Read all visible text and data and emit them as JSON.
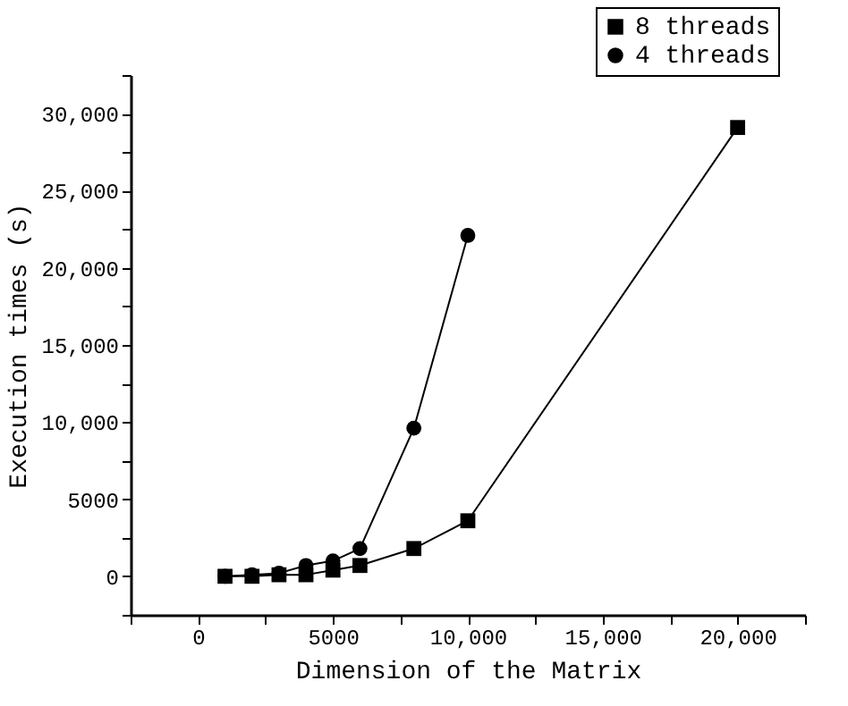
{
  "chart_data": {
    "type": "line",
    "xlabel": "Dimension of the Matrix",
    "ylabel": "Execution times (s)",
    "xlim": [
      -2500,
      22500
    ],
    "xticks": [
      {
        "value": -2500,
        "label": null
      },
      0,
      {
        "value": 2500,
        "label": null
      },
      5000,
      {
        "value": 7500,
        "label": null
      },
      {
        "value": 10000,
        "label": "10,000"
      },
      {
        "value": 12500,
        "label": null
      },
      {
        "value": 15000,
        "label": "15,000"
      },
      {
        "value": 17500,
        "label": null
      },
      {
        "value": 20000,
        "label": "20,000"
      },
      {
        "value": 22500,
        "label": null
      }
    ],
    "ylim": [
      -2500,
      32500
    ],
    "yticks": [
      {
        "value": -2500,
        "label": null
      },
      0,
      {
        "value": 2500,
        "label": null
      },
      5000,
      {
        "value": 7500,
        "label": null
      },
      {
        "value": 10000,
        "label": "10,000"
      },
      {
        "value": 12500,
        "label": null
      },
      {
        "value": 15000,
        "label": "15,000"
      },
      {
        "value": 17500,
        "label": null
      },
      {
        "value": 20000,
        "label": "20,000"
      },
      {
        "value": 22500,
        "label": null
      },
      {
        "value": 25000,
        "label": "25,000"
      },
      {
        "value": 27500,
        "label": null
      },
      {
        "value": 30000,
        "label": "30,000"
      },
      {
        "value": 32500,
        "label": null
      }
    ],
    "grid": false,
    "legend": "top right",
    "line_style": "solid",
    "series": [
      {
        "name": "8 threads",
        "color": "#000000",
        "marker": "square",
        "x": [
          1000,
          2000,
          3000,
          4000,
          5000,
          6000,
          8000,
          10000,
          20000
        ],
        "values": [
          0,
          0,
          100,
          100,
          400,
          700,
          1800,
          3600,
          29100
        ]
      },
      {
        "name": "4 threads",
        "color": "#000000",
        "marker": "circle",
        "x": [
          1000,
          2000,
          3000,
          4000,
          5000,
          6000,
          8000,
          10000
        ],
        "values": [
          0,
          100,
          200,
          700,
          1000,
          1800,
          9600,
          22100
        ]
      }
    ]
  }
}
